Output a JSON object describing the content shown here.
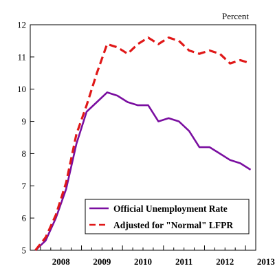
{
  "chart_data": {
    "type": "line",
    "title": "",
    "unit_label": "Percent",
    "xlabel": "",
    "ylabel": "",
    "xlim": [
      2007.75,
      2013.25
    ],
    "ylim": [
      5,
      12
    ],
    "yticks": [
      5,
      6,
      7,
      8,
      9,
      10,
      11,
      12
    ],
    "xtick_labels": [
      {
        "x": 2008.0,
        "label": "2008"
      },
      {
        "x": 2009.0,
        "label": "2009"
      },
      {
        "x": 2010.0,
        "label": "2010"
      },
      {
        "x": 2011.0,
        "label": "2011"
      },
      {
        "x": 2012.0,
        "label": "2012"
      },
      {
        "x": 2013.0,
        "label": "2013"
      }
    ],
    "grid": false,
    "legend_position": "bottom-right",
    "series": [
      {
        "name": "Official Unemployment Rate",
        "color": "#7a0ea0",
        "style": "solid",
        "x": [
          2007.875,
          2008.125,
          2008.375,
          2008.625,
          2008.875,
          2009.125,
          2009.375,
          2009.625,
          2009.875,
          2010.125,
          2010.375,
          2010.625,
          2010.875,
          2011.125,
          2011.375,
          2011.625,
          2011.875,
          2012.125,
          2012.375,
          2012.625,
          2012.875,
          2013.125
        ],
        "y": [
          5.0,
          5.3,
          6.0,
          6.9,
          8.3,
          9.3,
          9.6,
          9.9,
          9.8,
          9.6,
          9.5,
          9.5,
          9.0,
          9.1,
          9.0,
          8.7,
          8.2,
          8.2,
          8.0,
          7.8,
          7.7,
          7.5
        ]
      },
      {
        "name": "Adjusted for \"Normal\" LFPR",
        "color": "#e01818",
        "style": "dashed",
        "x": [
          2007.875,
          2008.125,
          2008.375,
          2008.625,
          2008.875,
          2009.125,
          2009.375,
          2009.625,
          2009.875,
          2010.125,
          2010.375,
          2010.625,
          2010.875,
          2011.125,
          2011.375,
          2011.625,
          2011.875,
          2012.125,
          2012.375,
          2012.625,
          2012.875,
          2013.125
        ],
        "y": [
          5.0,
          5.4,
          6.1,
          7.1,
          8.6,
          9.5,
          10.5,
          11.4,
          11.3,
          11.1,
          11.4,
          11.6,
          11.4,
          11.6,
          11.5,
          11.2,
          11.1,
          11.2,
          11.1,
          10.8,
          10.9,
          10.8
        ]
      }
    ]
  }
}
